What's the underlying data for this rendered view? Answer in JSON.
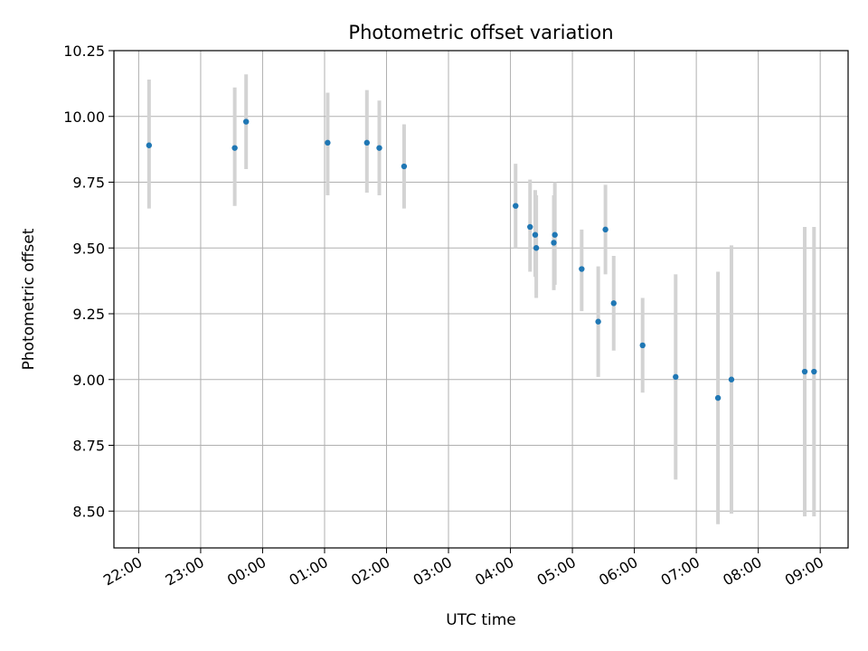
{
  "chart_data": {
    "type": "scatter",
    "title": "Photometric offset variation",
    "xlabel": "UTC time",
    "ylabel": "Photometric offset",
    "xlim": [
      "21:36",
      "33:27"
    ],
    "ylim": [
      8.36,
      10.25
    ],
    "xticks": [
      {
        "t": "22:00",
        "label": "22:00"
      },
      {
        "t": "23:00",
        "label": "23:00"
      },
      {
        "t": "24:00",
        "label": "00:00"
      },
      {
        "t": "25:00",
        "label": "01:00"
      },
      {
        "t": "26:00",
        "label": "02:00"
      },
      {
        "t": "27:00",
        "label": "03:00"
      },
      {
        "t": "28:00",
        "label": "04:00"
      },
      {
        "t": "29:00",
        "label": "05:00"
      },
      {
        "t": "30:00",
        "label": "06:00"
      },
      {
        "t": "31:00",
        "label": "07:00"
      },
      {
        "t": "32:00",
        "label": "08:00"
      },
      {
        "t": "33:00",
        "label": "09:00"
      }
    ],
    "yticks": [
      {
        "v": 8.5,
        "label": "8.50"
      },
      {
        "v": 8.75,
        "label": "8.75"
      },
      {
        "v": 9.0,
        "label": "9.00"
      },
      {
        "v": 9.25,
        "label": "9.25"
      },
      {
        "v": 9.5,
        "label": "9.50"
      },
      {
        "v": 9.75,
        "label": "9.75"
      },
      {
        "v": 10.0,
        "label": "10.00"
      },
      {
        "v": 10.25,
        "label": "10.25"
      }
    ],
    "grid": true,
    "colors": {
      "point": "#1f77b4",
      "errorbar": "#d3d3d3",
      "grid": "#b0b0b0"
    },
    "points": [
      {
        "t": "22:10",
        "y": 9.89,
        "lo": 9.65,
        "hi": 10.14
      },
      {
        "t": "23:33",
        "y": 9.88,
        "lo": 9.66,
        "hi": 10.11
      },
      {
        "t": "23:44",
        "y": 9.98,
        "lo": 9.8,
        "hi": 10.16
      },
      {
        "t": "25:03",
        "y": 9.9,
        "lo": 9.7,
        "hi": 10.09
      },
      {
        "t": "25:41",
        "y": 9.9,
        "lo": 9.71,
        "hi": 10.1
      },
      {
        "t": "25:53",
        "y": 9.88,
        "lo": 9.7,
        "hi": 10.06
      },
      {
        "t": "26:17",
        "y": 9.81,
        "lo": 9.65,
        "hi": 9.97
      },
      {
        "t": "28:05",
        "y": 9.66,
        "lo": 9.5,
        "hi": 9.82
      },
      {
        "t": "28:19",
        "y": 9.58,
        "lo": 9.41,
        "hi": 9.76
      },
      {
        "t": "28:24",
        "y": 9.55,
        "lo": 9.39,
        "hi": 9.72
      },
      {
        "t": "28:25",
        "y": 9.5,
        "lo": 9.31,
        "hi": 9.7
      },
      {
        "t": "28:42",
        "y": 9.52,
        "lo": 9.34,
        "hi": 9.7
      },
      {
        "t": "28:43",
        "y": 9.55,
        "lo": 9.36,
        "hi": 9.75
      },
      {
        "t": "29:09",
        "y": 9.42,
        "lo": 9.26,
        "hi": 9.57
      },
      {
        "t": "29:25",
        "y": 9.22,
        "lo": 9.01,
        "hi": 9.43
      },
      {
        "t": "29:32",
        "y": 9.57,
        "lo": 9.4,
        "hi": 9.74
      },
      {
        "t": "29:40",
        "y": 9.29,
        "lo": 9.11,
        "hi": 9.47
      },
      {
        "t": "30:08",
        "y": 9.13,
        "lo": 8.95,
        "hi": 9.31
      },
      {
        "t": "30:40",
        "y": 9.01,
        "lo": 8.62,
        "hi": 9.4
      },
      {
        "t": "31:21",
        "y": 8.93,
        "lo": 8.45,
        "hi": 9.41
      },
      {
        "t": "31:34",
        "y": 9.0,
        "lo": 8.49,
        "hi": 9.51
      },
      {
        "t": "32:45",
        "y": 9.03,
        "lo": 8.48,
        "hi": 9.58
      },
      {
        "t": "32:54",
        "y": 9.03,
        "lo": 8.48,
        "hi": 9.58
      }
    ]
  }
}
